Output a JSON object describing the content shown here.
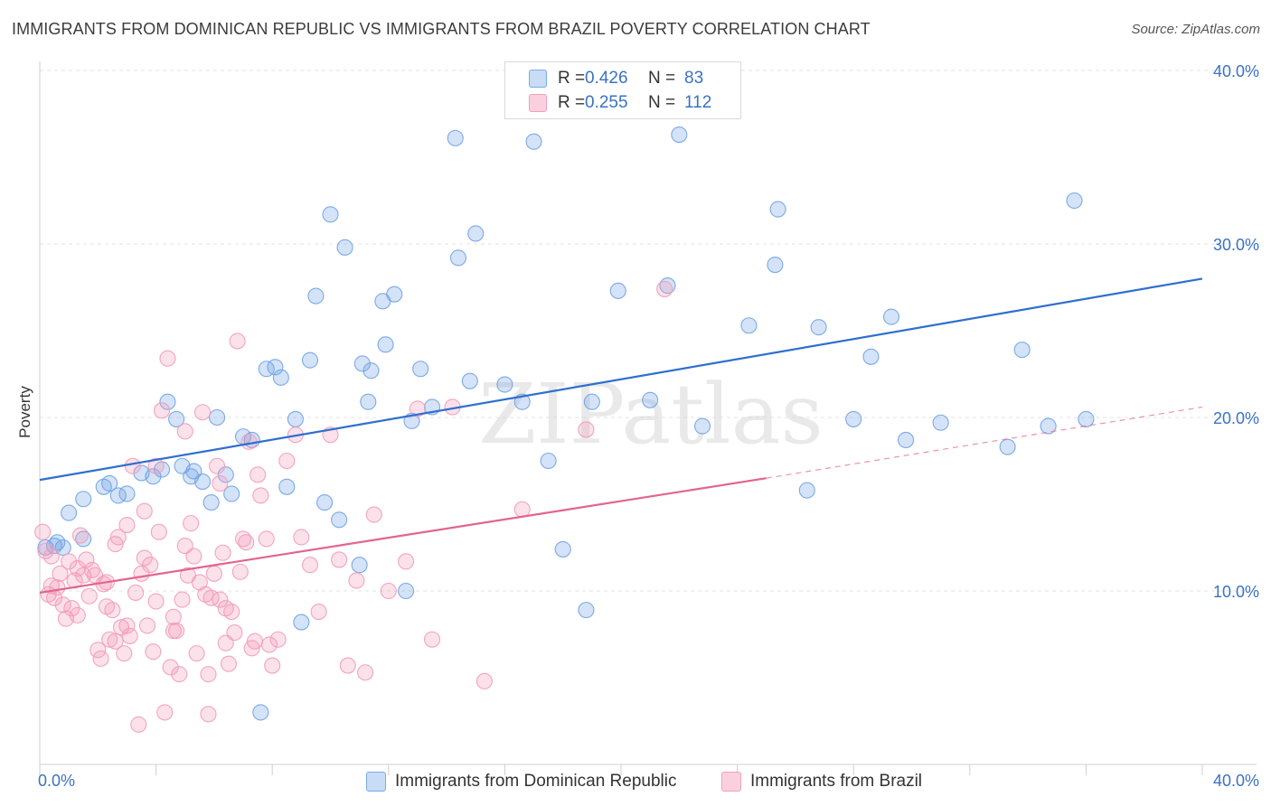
{
  "title": "IMMIGRANTS FROM DOMINICAN REPUBLIC VS IMMIGRANTS FROM BRAZIL POVERTY CORRELATION CHART",
  "source": "Source: ZipAtlas.com",
  "watermark": "ZIPatlas",
  "legend": {
    "rows": [
      {
        "r_label": "R =",
        "r_value": "0.426",
        "n_label": "N =",
        "n_value": "83",
        "color": "#7aaae8"
      },
      {
        "r_label": "R =",
        "r_value": "0.255",
        "n_label": "N =",
        "n_value": "112",
        "color": "#f3a0bb"
      }
    ]
  },
  "bottom_legend": [
    {
      "label": "Immigrants from Dominican Republic",
      "color": "#7aaae8"
    },
    {
      "label": "Immigrants from Brazil",
      "color": "#f3a0bb"
    }
  ],
  "chart_data": {
    "type": "scatter",
    "title": "IMMIGRANTS FROM DOMINICAN REPUBLIC VS IMMIGRANTS FROM BRAZIL POVERTY CORRELATION CHART",
    "xlabel": "",
    "ylabel": "Poverty",
    "xlim": [
      0,
      40
    ],
    "ylim": [
      0,
      40
    ],
    "x_tick_labels": [
      "0.0%",
      "40.0%"
    ],
    "y_tick_labels": [
      "10.0%",
      "20.0%",
      "30.0%",
      "40.0%"
    ],
    "y_tick_values": [
      10,
      20,
      30,
      40
    ],
    "grid": true,
    "series": [
      {
        "name": "Immigrants from Dominican Republic",
        "color": "#6fa2e6",
        "line_color": "#2e6fcf",
        "trend": {
          "x": [
            0,
            40
          ],
          "y": [
            16.4,
            28.0
          ]
        },
        "points": [
          [
            0.2,
            12.5
          ],
          [
            0.5,
            12.6
          ],
          [
            0.6,
            12.8
          ],
          [
            0.8,
            12.5
          ],
          [
            1.0,
            14.5
          ],
          [
            1.5,
            13.0
          ],
          [
            1.5,
            15.3
          ],
          [
            2.2,
            16.0
          ],
          [
            2.7,
            15.5
          ],
          [
            3.0,
            15.6
          ],
          [
            2.4,
            16.2
          ],
          [
            3.5,
            16.8
          ],
          [
            3.9,
            16.6
          ],
          [
            4.2,
            17.0
          ],
          [
            4.4,
            20.9
          ],
          [
            4.7,
            19.9
          ],
          [
            4.9,
            17.2
          ],
          [
            5.2,
            16.6
          ],
          [
            5.3,
            16.9
          ],
          [
            5.6,
            16.3
          ],
          [
            5.9,
            15.1
          ],
          [
            6.1,
            20.0
          ],
          [
            6.4,
            16.7
          ],
          [
            6.6,
            15.6
          ],
          [
            7.0,
            18.9
          ],
          [
            7.3,
            18.7
          ],
          [
            7.6,
            3.0
          ],
          [
            7.8,
            22.8
          ],
          [
            8.1,
            22.9
          ],
          [
            8.3,
            22.3
          ],
          [
            8.5,
            16.0
          ],
          [
            8.8,
            19.9
          ],
          [
            9.0,
            8.2
          ],
          [
            9.3,
            23.3
          ],
          [
            9.5,
            27.0
          ],
          [
            9.8,
            15.1
          ],
          [
            10.0,
            31.7
          ],
          [
            10.3,
            14.1
          ],
          [
            10.5,
            29.8
          ],
          [
            11.0,
            11.5
          ],
          [
            11.1,
            23.1
          ],
          [
            11.3,
            20.9
          ],
          [
            11.4,
            22.7
          ],
          [
            11.8,
            26.7
          ],
          [
            11.9,
            24.2
          ],
          [
            12.2,
            27.1
          ],
          [
            12.6,
            10.0
          ],
          [
            12.8,
            19.8
          ],
          [
            13.1,
            22.8
          ],
          [
            13.5,
            20.6
          ],
          [
            14.3,
            36.1
          ],
          [
            14.4,
            29.2
          ],
          [
            14.8,
            22.1
          ],
          [
            15.0,
            30.6
          ],
          [
            16.0,
            21.9
          ],
          [
            16.6,
            20.9
          ],
          [
            17.0,
            35.9
          ],
          [
            17.5,
            17.5
          ],
          [
            18.0,
            12.4
          ],
          [
            18.8,
            8.9
          ],
          [
            19.0,
            20.9
          ],
          [
            19.9,
            27.3
          ],
          [
            21.0,
            21.0
          ],
          [
            21.6,
            27.6
          ],
          [
            22.0,
            36.3
          ],
          [
            22.8,
            19.5
          ],
          [
            24.4,
            25.3
          ],
          [
            25.3,
            28.8
          ],
          [
            25.4,
            32.0
          ],
          [
            26.4,
            15.8
          ],
          [
            26.8,
            25.2
          ],
          [
            28.0,
            19.9
          ],
          [
            28.6,
            23.5
          ],
          [
            29.3,
            25.8
          ],
          [
            29.8,
            18.7
          ],
          [
            31.0,
            19.7
          ],
          [
            33.3,
            18.3
          ],
          [
            33.8,
            23.9
          ],
          [
            34.7,
            19.5
          ],
          [
            35.6,
            32.5
          ],
          [
            36.0,
            19.9
          ]
        ]
      },
      {
        "name": "Immigrants from Brazil",
        "color": "#f39bb8",
        "line_color": "#e2648f",
        "trend": {
          "x": [
            0,
            25
          ],
          "y": [
            9.9,
            16.5
          ]
        },
        "trend_ext": {
          "x": [
            25,
            40
          ],
          "y": [
            16.5,
            20.6
          ]
        },
        "points": [
          [
            0.1,
            13.4
          ],
          [
            0.2,
            12.3
          ],
          [
            0.3,
            9.8
          ],
          [
            0.4,
            10.3
          ],
          [
            0.5,
            9.6
          ],
          [
            0.6,
            10.2
          ],
          [
            0.7,
            11.0
          ],
          [
            0.8,
            9.2
          ],
          [
            0.9,
            8.4
          ],
          [
            1.0,
            11.7
          ],
          [
            1.1,
            9.0
          ],
          [
            1.2,
            10.6
          ],
          [
            1.3,
            11.3
          ],
          [
            1.4,
            13.2
          ],
          [
            1.5,
            10.9
          ],
          [
            1.6,
            11.8
          ],
          [
            1.7,
            9.7
          ],
          [
            1.8,
            11.2
          ],
          [
            1.9,
            10.9
          ],
          [
            2.0,
            6.6
          ],
          [
            2.1,
            6.1
          ],
          [
            2.2,
            10.4
          ],
          [
            2.3,
            10.5
          ],
          [
            2.4,
            7.2
          ],
          [
            2.5,
            8.9
          ],
          [
            2.6,
            12.7
          ],
          [
            2.7,
            13.1
          ],
          [
            2.8,
            7.9
          ],
          [
            2.9,
            6.4
          ],
          [
            3.0,
            13.8
          ],
          [
            3.1,
            7.4
          ],
          [
            3.2,
            17.2
          ],
          [
            3.3,
            9.9
          ],
          [
            3.4,
            2.3
          ],
          [
            3.5,
            11.0
          ],
          [
            3.6,
            14.6
          ],
          [
            3.7,
            8.0
          ],
          [
            3.8,
            11.5
          ],
          [
            3.9,
            6.5
          ],
          [
            4.0,
            17.2
          ],
          [
            4.1,
            13.4
          ],
          [
            4.2,
            20.4
          ],
          [
            4.3,
            3.0
          ],
          [
            4.4,
            23.4
          ],
          [
            4.5,
            5.6
          ],
          [
            4.6,
            8.5
          ],
          [
            4.7,
            7.7
          ],
          [
            4.8,
            5.2
          ],
          [
            4.9,
            9.5
          ],
          [
            5.0,
            19.2
          ],
          [
            5.1,
            10.9
          ],
          [
            5.2,
            13.9
          ],
          [
            5.3,
            12.0
          ],
          [
            5.4,
            6.4
          ],
          [
            5.5,
            10.5
          ],
          [
            5.6,
            20.3
          ],
          [
            5.7,
            9.8
          ],
          [
            5.8,
            2.9
          ],
          [
            5.9,
            9.6
          ],
          [
            6.0,
            11.0
          ],
          [
            6.1,
            17.2
          ],
          [
            6.2,
            16.2
          ],
          [
            6.3,
            12.2
          ],
          [
            6.4,
            7.0
          ],
          [
            6.5,
            5.8
          ],
          [
            6.6,
            8.8
          ],
          [
            6.7,
            7.6
          ],
          [
            6.8,
            24.4
          ],
          [
            6.9,
            11.1
          ],
          [
            7.0,
            13.0
          ],
          [
            7.1,
            12.8
          ],
          [
            7.2,
            18.6
          ],
          [
            7.3,
            6.7
          ],
          [
            7.4,
            7.1
          ],
          [
            7.5,
            16.7
          ],
          [
            7.6,
            15.5
          ],
          [
            7.8,
            13.0
          ],
          [
            8.0,
            5.7
          ],
          [
            8.2,
            7.2
          ],
          [
            8.5,
            17.5
          ],
          [
            8.8,
            19.0
          ],
          [
            9.0,
            13.1
          ],
          [
            9.3,
            11.5
          ],
          [
            9.6,
            8.8
          ],
          [
            10.0,
            19.0
          ],
          [
            10.3,
            11.8
          ],
          [
            10.6,
            5.7
          ],
          [
            10.9,
            10.6
          ],
          [
            11.2,
            5.3
          ],
          [
            11.5,
            14.4
          ],
          [
            12.0,
            10.0
          ],
          [
            12.6,
            11.7
          ],
          [
            13.0,
            20.5
          ],
          [
            13.5,
            7.2
          ],
          [
            14.2,
            20.6
          ],
          [
            15.3,
            4.8
          ],
          [
            16.6,
            14.7
          ],
          [
            18.8,
            19.3
          ],
          [
            21.5,
            27.4
          ],
          [
            2.6,
            7.1
          ],
          [
            3.0,
            8.0
          ],
          [
            4.0,
            9.4
          ],
          [
            5.8,
            5.2
          ],
          [
            6.4,
            9.0
          ],
          [
            7.9,
            6.9
          ],
          [
            0.4,
            12.0
          ],
          [
            1.3,
            8.6
          ],
          [
            2.3,
            9.1
          ],
          [
            3.6,
            11.9
          ],
          [
            4.6,
            7.7
          ],
          [
            5.0,
            12.6
          ],
          [
            6.2,
            9.5
          ]
        ]
      }
    ]
  }
}
